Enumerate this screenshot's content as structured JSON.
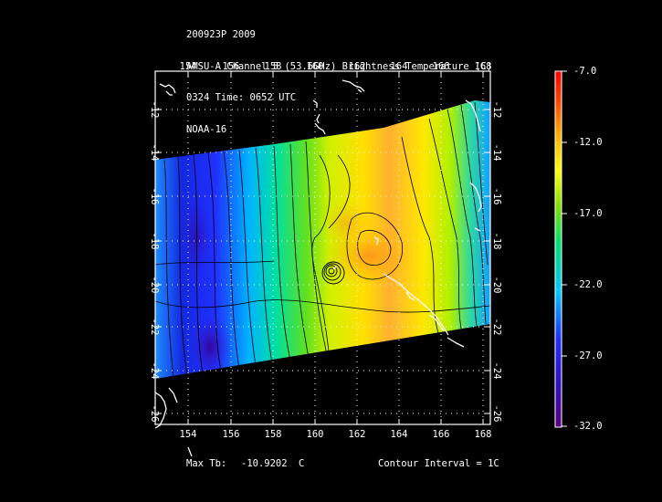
{
  "header": {
    "line1": "200923P 2009",
    "line2": "AMSU-A Channel 5 (53.6GHz) Brightness Temperature (C)",
    "line3": "0324 Time: 0652 UTC",
    "line4": "NOAA-16"
  },
  "map": {
    "lon_ticks": [
      "154",
      "156",
      "158",
      "160",
      "162",
      "164",
      "166",
      "168"
    ],
    "lat_ticks": [
      "-12",
      "-14",
      "-16",
      "-18",
      "-20",
      "-22",
      "-24",
      "-26"
    ],
    "lon_range": [
      152.8,
      168.2
    ],
    "lat_range": [
      -10.5,
      -26.3
    ],
    "grid": true,
    "colors": {
      "land": "#000000",
      "coast": "#ffffff",
      "grid": "#ffffff"
    }
  },
  "colorbar": {
    "labels": [
      "-7.0",
      "-12.0",
      "-17.0",
      "-22.0",
      "-27.0",
      "-32.0"
    ],
    "min": -32.0,
    "max": -7.0,
    "colors": [
      "#5a0080",
      "#2030ff",
      "#00c8ff",
      "#00e070",
      "#80e000",
      "#ffff00",
      "#ffb000",
      "#ff4000",
      "#ff0000"
    ]
  },
  "footer": {
    "max_label": "Max Tb:",
    "max_value": "-10.9202",
    "max_unit": "C",
    "contour": "Contour Interval = 1C"
  }
}
